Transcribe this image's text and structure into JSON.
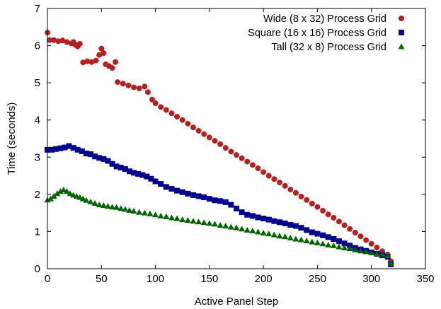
{
  "chart_data": {
    "type": "scatter",
    "title": "",
    "xlabel": "Active Panel Step",
    "ylabel": "Time (seconds)",
    "xlim": [
      0,
      350
    ],
    "ylim": [
      0,
      7
    ],
    "xticks": [
      0,
      50,
      100,
      150,
      200,
      250,
      300,
      350
    ],
    "yticks": [
      0,
      1,
      2,
      3,
      4,
      5,
      6,
      7
    ],
    "legend_position": "top-right",
    "series": [
      {
        "name": "Wide (8 x 32) Process Grid",
        "color": "#b22222",
        "marker": "circle",
        "points": [
          [
            0,
            6.35
          ],
          [
            2,
            6.15
          ],
          [
            6,
            6.15
          ],
          [
            10,
            6.12
          ],
          [
            14,
            6.14
          ],
          [
            18,
            6.1
          ],
          [
            22,
            6.06
          ],
          [
            24,
            6.1
          ],
          [
            26,
            6.02
          ],
          [
            28,
            5.98
          ],
          [
            30,
            6.05
          ],
          [
            33,
            5.55
          ],
          [
            37,
            5.58
          ],
          [
            41,
            5.56
          ],
          [
            45,
            5.6
          ],
          [
            48,
            5.75
          ],
          [
            50,
            5.92
          ],
          [
            52,
            5.8
          ],
          [
            54,
            5.5
          ],
          [
            57,
            5.45
          ],
          [
            60,
            5.4
          ],
          [
            63,
            5.56
          ],
          [
            65,
            5.02
          ],
          [
            70,
            4.98
          ],
          [
            75,
            4.93
          ],
          [
            80,
            4.88
          ],
          [
            85,
            4.85
          ],
          [
            90,
            4.9
          ],
          [
            93,
            4.75
          ],
          [
            97,
            4.55
          ],
          [
            100,
            4.45
          ],
          [
            105,
            4.35
          ],
          [
            110,
            4.27
          ],
          [
            115,
            4.18
          ],
          [
            120,
            4.09
          ],
          [
            125,
            4.0
          ],
          [
            130,
            3.9
          ],
          [
            135,
            3.8
          ],
          [
            140,
            3.71
          ],
          [
            145,
            3.62
          ],
          [
            150,
            3.53
          ],
          [
            155,
            3.44
          ],
          [
            160,
            3.35
          ],
          [
            165,
            3.25
          ],
          [
            170,
            3.15
          ],
          [
            175,
            3.06
          ],
          [
            180,
            2.97
          ],
          [
            185,
            2.88
          ],
          [
            190,
            2.79
          ],
          [
            195,
            2.7
          ],
          [
            200,
            2.6
          ],
          [
            205,
            2.5
          ],
          [
            210,
            2.41
          ],
          [
            215,
            2.32
          ],
          [
            220,
            2.23
          ],
          [
            225,
            2.13
          ],
          [
            230,
            2.04
          ],
          [
            235,
            1.94
          ],
          [
            240,
            1.85
          ],
          [
            245,
            1.75
          ],
          [
            250,
            1.66
          ],
          [
            255,
            1.56
          ],
          [
            260,
            1.46
          ],
          [
            265,
            1.37
          ],
          [
            270,
            1.27
          ],
          [
            275,
            1.17
          ],
          [
            280,
            1.07
          ],
          [
            285,
            0.97
          ],
          [
            290,
            0.87
          ],
          [
            295,
            0.77
          ],
          [
            300,
            0.67
          ],
          [
            305,
            0.57
          ],
          [
            310,
            0.47
          ],
          [
            315,
            0.38
          ],
          [
            318,
            0.2
          ]
        ]
      },
      {
        "name": "Square (16 x 16) Process Grid",
        "color": "#00008b",
        "marker": "square",
        "points": [
          [
            0,
            3.2
          ],
          [
            4,
            3.2
          ],
          [
            8,
            3.22
          ],
          [
            12,
            3.24
          ],
          [
            16,
            3.26
          ],
          [
            20,
            3.3
          ],
          [
            24,
            3.25
          ],
          [
            28,
            3.2
          ],
          [
            32,
            3.16
          ],
          [
            36,
            3.1
          ],
          [
            40,
            3.08
          ],
          [
            44,
            3.02
          ],
          [
            48,
            2.98
          ],
          [
            52,
            2.95
          ],
          [
            56,
            2.9
          ],
          [
            60,
            2.82
          ],
          [
            64,
            2.75
          ],
          [
            68,
            2.72
          ],
          [
            72,
            2.68
          ],
          [
            76,
            2.62
          ],
          [
            80,
            2.58
          ],
          [
            84,
            2.55
          ],
          [
            88,
            2.52
          ],
          [
            92,
            2.48
          ],
          [
            96,
            2.42
          ],
          [
            100,
            2.35
          ],
          [
            105,
            2.28
          ],
          [
            110,
            2.2
          ],
          [
            115,
            2.15
          ],
          [
            120,
            2.1
          ],
          [
            125,
            2.06
          ],
          [
            130,
            2.02
          ],
          [
            135,
            1.98
          ],
          [
            140,
            1.95
          ],
          [
            145,
            1.92
          ],
          [
            150,
            1.88
          ],
          [
            155,
            1.84
          ],
          [
            160,
            1.82
          ],
          [
            165,
            1.79
          ],
          [
            170,
            1.72
          ],
          [
            175,
            1.62
          ],
          [
            180,
            1.52
          ],
          [
            185,
            1.45
          ],
          [
            190,
            1.42
          ],
          [
            195,
            1.38
          ],
          [
            200,
            1.35
          ],
          [
            205,
            1.32
          ],
          [
            210,
            1.28
          ],
          [
            215,
            1.25
          ],
          [
            220,
            1.22
          ],
          [
            225,
            1.18
          ],
          [
            230,
            1.15
          ],
          [
            235,
            1.1
          ],
          [
            240,
            1.04
          ],
          [
            245,
            0.98
          ],
          [
            250,
            0.94
          ],
          [
            255,
            0.9
          ],
          [
            260,
            0.85
          ],
          [
            265,
            0.8
          ],
          [
            270,
            0.74
          ],
          [
            275,
            0.68
          ],
          [
            280,
            0.62
          ],
          [
            285,
            0.56
          ],
          [
            290,
            0.52
          ],
          [
            295,
            0.48
          ],
          [
            300,
            0.44
          ],
          [
            305,
            0.4
          ],
          [
            310,
            0.36
          ],
          [
            315,
            0.32
          ],
          [
            318,
            0.12
          ]
        ]
      },
      {
        "name": "Tall (32 x 8) Process Grid",
        "color": "#006400",
        "marker": "triangle",
        "points": [
          [
            0,
            1.85
          ],
          [
            3,
            1.88
          ],
          [
            6,
            1.95
          ],
          [
            9,
            2.02
          ],
          [
            12,
            2.08
          ],
          [
            15,
            2.12
          ],
          [
            18,
            2.08
          ],
          [
            21,
            2.02
          ],
          [
            24,
            1.98
          ],
          [
            27,
            1.95
          ],
          [
            30,
            1.92
          ],
          [
            33,
            1.88
          ],
          [
            36,
            1.84
          ],
          [
            40,
            1.8
          ],
          [
            44,
            1.76
          ],
          [
            48,
            1.72
          ],
          [
            52,
            1.7
          ],
          [
            56,
            1.68
          ],
          [
            60,
            1.66
          ],
          [
            64,
            1.65
          ],
          [
            68,
            1.62
          ],
          [
            72,
            1.6
          ],
          [
            76,
            1.57
          ],
          [
            80,
            1.55
          ],
          [
            85,
            1.52
          ],
          [
            90,
            1.5
          ],
          [
            95,
            1.48
          ],
          [
            100,
            1.45
          ],
          [
            105,
            1.42
          ],
          [
            110,
            1.4
          ],
          [
            115,
            1.37
          ],
          [
            120,
            1.35
          ],
          [
            125,
            1.32
          ],
          [
            130,
            1.3
          ],
          [
            135,
            1.28
          ],
          [
            140,
            1.26
          ],
          [
            145,
            1.24
          ],
          [
            150,
            1.22
          ],
          [
            155,
            1.2
          ],
          [
            160,
            1.17
          ],
          [
            165,
            1.15
          ],
          [
            170,
            1.12
          ],
          [
            175,
            1.1
          ],
          [
            180,
            1.07
          ],
          [
            185,
            1.04
          ],
          [
            190,
            1.02
          ],
          [
            195,
            0.99
          ],
          [
            200,
            0.96
          ],
          [
            205,
            0.94
          ],
          [
            210,
            0.91
          ],
          [
            215,
            0.88
          ],
          [
            220,
            0.86
          ],
          [
            225,
            0.83
          ],
          [
            230,
            0.8
          ],
          [
            235,
            0.78
          ],
          [
            240,
            0.75
          ],
          [
            245,
            0.72
          ],
          [
            250,
            0.7
          ],
          [
            255,
            0.67
          ],
          [
            260,
            0.64
          ],
          [
            265,
            0.62
          ],
          [
            270,
            0.59
          ],
          [
            275,
            0.56
          ],
          [
            280,
            0.54
          ],
          [
            285,
            0.51
          ],
          [
            290,
            0.48
          ],
          [
            295,
            0.46
          ],
          [
            300,
            0.43
          ],
          [
            305,
            0.4
          ],
          [
            310,
            0.38
          ],
          [
            315,
            0.35
          ],
          [
            318,
            0.15
          ]
        ]
      }
    ]
  }
}
